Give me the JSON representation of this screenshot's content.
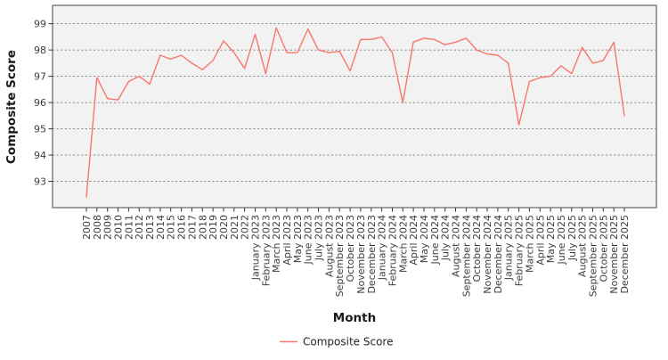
{
  "chart_data": {
    "type": "line",
    "title": "",
    "xlabel": "Month",
    "ylabel": "Composite Score",
    "x": [
      "2007",
      "2008",
      "2009",
      "2010",
      "2011",
      "2012",
      "2013",
      "2014",
      "2015",
      "2016",
      "2017",
      "2018",
      "2019",
      "2020",
      "2021",
      "2022",
      "January 2023",
      "February 2023",
      "March 2023",
      "April 2023",
      "May 2023",
      "June 2023",
      "July 2023",
      "August 2023",
      "September 2023",
      "October 2023",
      "November 2023",
      "December 2023",
      "January 2024",
      "February 2024",
      "March 2024",
      "April 2024",
      "May 2024",
      "June 2024",
      "July 2024",
      "August 2024",
      "September 2024",
      "October 2024",
      "November 2024",
      "December 2024",
      "January 2025",
      "February 2025",
      "March 2025",
      "April 2025",
      "May 2025",
      "June 2025",
      "July 2025",
      "August 2025",
      "September 2025",
      "October 2025",
      "November 2025",
      "December 2025"
    ],
    "series": [
      {
        "name": "Composite Score",
        "values": [
          92.4,
          96.95,
          96.15,
          96.1,
          96.8,
          97.0,
          96.7,
          97.8,
          97.65,
          97.8,
          97.5,
          97.25,
          97.6,
          98.35,
          97.9,
          97.3,
          98.6,
          97.1,
          98.85,
          97.9,
          97.9,
          98.8,
          98.0,
          97.9,
          97.95,
          97.2,
          98.4,
          98.4,
          98.5,
          97.9,
          96.0,
          98.3,
          98.45,
          98.4,
          98.2,
          98.3,
          98.45,
          98.0,
          97.85,
          97.8,
          97.5,
          95.15,
          96.8,
          96.95,
          97.0,
          97.4,
          97.1,
          98.1,
          97.5,
          97.6,
          98.3,
          95.5
        ]
      }
    ],
    "yticks": [
      93,
      94,
      95,
      96,
      97,
      98,
      99
    ],
    "ylim": [
      92.0,
      99.7
    ],
    "grid": true,
    "grid_style": "dashed",
    "legend_position": "bottom",
    "colors": {
      "line": "#F8766D",
      "panel_bg": "#F2F2F2",
      "grid": "#6B6B6B",
      "border": "#6E6E6E",
      "tick": "#333333",
      "tick_label": "#3D3D3D",
      "axis_title": "#1A1A1A"
    }
  }
}
